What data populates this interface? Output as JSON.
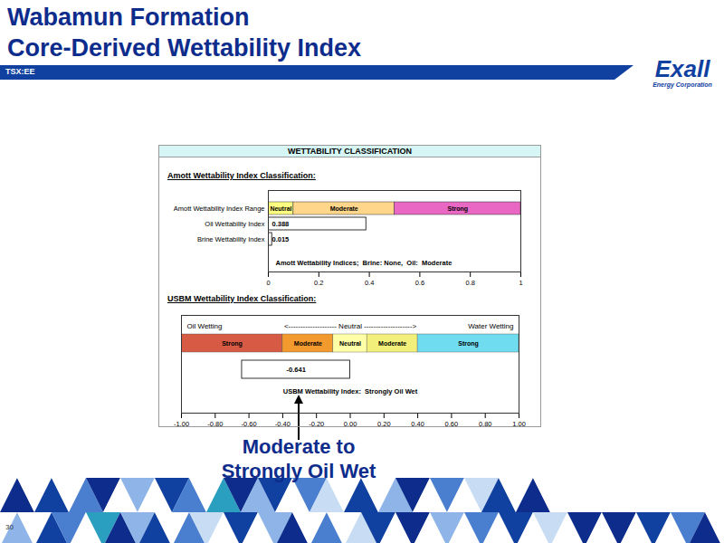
{
  "title": "Wabamun Formation",
  "subtitle": "Core-Derived Wettability Index",
  "ticker": "TSX:EE",
  "logo": {
    "name": "Exall",
    "tagline": "Energy Corporation"
  },
  "panel_title": "WETTABILITY CLASSIFICATION",
  "caption": "Moderate to Strongly Oil Wet",
  "page_number": 30,
  "chart_data": [
    {
      "type": "bar",
      "orientation": "horizontal",
      "title": "Amott Wettability Index Classification:",
      "range_name": "Amott Wettability Index Range",
      "range_bands": [
        {
          "label": "Neutral",
          "start": 0,
          "end": 0.1,
          "color": "#ffff80"
        },
        {
          "label": "Moderate",
          "start": 0.1,
          "end": 0.5,
          "color": "#ffd68a"
        },
        {
          "label": "Strong",
          "start": 0.5,
          "end": 1,
          "color": "#e868c4"
        }
      ],
      "categories": [
        "Oil Wettability Index",
        "Brine Wettability Index"
      ],
      "values": [
        0.388,
        0.015
      ],
      "color": "#ffffff",
      "data_labels": true,
      "annotation": "Amott Wettability Indices;  Brine: None,  Oil:  Moderate",
      "xlim": [
        0,
        1
      ],
      "xticks": [
        0,
        0.2,
        0.4,
        0.6,
        0.8,
        1
      ]
    },
    {
      "type": "bar",
      "orientation": "horizontal",
      "title": "USBM Wettability Index Classification:",
      "header": {
        "left": "Oil Wetting",
        "center": "<-------------------- Neutral -------------------->",
        "right": "Water Wetting"
      },
      "range_bands": [
        {
          "label": "Strong",
          "start": -1,
          "end": -0.4,
          "color": "#d65a44"
        },
        {
          "label": "Moderate",
          "start": -0.4,
          "end": -0.1,
          "color": "#f39a2e"
        },
        {
          "label": "Neutral",
          "start": -0.1,
          "end": 0.1,
          "color": "#ffffa8"
        },
        {
          "label": "Moderate",
          "start": 0.1,
          "end": 0.4,
          "color": "#f2f07a"
        },
        {
          "label": "Strong",
          "start": 0.4,
          "end": 1,
          "color": "#6fdcef"
        }
      ],
      "values": [
        -0.641
      ],
      "color": "#ffffff",
      "data_labels": true,
      "annotation": "USBM Wettability Index:  Strongly Oil Wet",
      "xlim": [
        -1,
        1
      ],
      "xticks": [
        {
          "value": -1,
          "label": "-1.00"
        },
        {
          "value": -0.8,
          "label": "-0.80"
        },
        {
          "value": -0.6,
          "label": "-0.60"
        },
        {
          "value": -0.4,
          "label": "-0.40"
        },
        {
          "value": -0.2,
          "label": "-0.20"
        },
        {
          "value": 0,
          "label": "0.00"
        },
        {
          "value": 0.2,
          "label": "0.20"
        },
        {
          "value": 0.4,
          "label": "0.40"
        },
        {
          "value": 0.6,
          "label": "0.60"
        },
        {
          "value": 0.8,
          "label": "0.80"
        },
        {
          "value": 1,
          "label": "1.00"
        }
      ]
    }
  ]
}
